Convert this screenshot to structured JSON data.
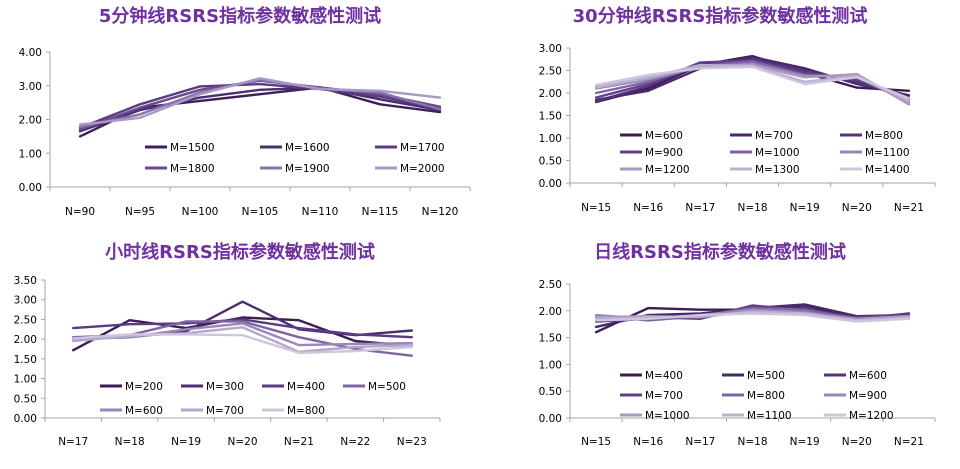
{
  "chart_data": [
    {
      "type": "line",
      "title": "5分钟线RSRS指标参数敏感性测试",
      "categories": [
        "N=90",
        "N=95",
        "N=100",
        "N=105",
        "N=110",
        "N=115",
        "N=120"
      ],
      "ylim": [
        0,
        4
      ],
      "yticks": [
        "0.00",
        "1.00",
        "2.00",
        "3.00",
        "4.00"
      ],
      "grid": false,
      "legend": "inside-lower",
      "series": [
        {
          "name": "M=1500",
          "values": [
            1.5,
            2.35,
            2.55,
            2.75,
            2.95,
            2.45,
            2.22
          ],
          "color": "#3f1f5a"
        },
        {
          "name": "M=1600",
          "values": [
            1.65,
            2.28,
            2.65,
            2.88,
            2.95,
            2.6,
            2.28
          ],
          "color": "#4a2e6e"
        },
        {
          "name": "M=1700",
          "values": [
            1.75,
            2.45,
            2.98,
            3.05,
            2.9,
            2.68,
            2.32
          ],
          "color": "#5a3a80"
        },
        {
          "name": "M=1800",
          "values": [
            1.7,
            2.35,
            2.88,
            3.15,
            2.95,
            2.75,
            2.38
          ],
          "color": "#6a4a90"
        },
        {
          "name": "M=1900",
          "values": [
            1.78,
            2.15,
            2.8,
            3.18,
            2.92,
            2.8,
            2.3
          ],
          "color": "#8a72ac"
        },
        {
          "name": "M=2000",
          "values": [
            1.85,
            2.05,
            2.75,
            3.22,
            2.9,
            2.85,
            2.65
          ],
          "color": "#a898c4"
        }
      ]
    },
    {
      "type": "line",
      "title": "30分钟线RSRS指标参数敏感性测试",
      "categories": [
        "N=15",
        "N=16",
        "N=17",
        "N=18",
        "N=19",
        "N=20",
        "N=21"
      ],
      "ylim": [
        0,
        3
      ],
      "yticks": [
        "0.00",
        "0.50",
        "1.00",
        "1.50",
        "2.00",
        "2.50",
        "3.00"
      ],
      "grid": false,
      "legend": "inside-lower",
      "series": [
        {
          "name": "M=600",
          "values": [
            1.8,
            2.1,
            2.62,
            2.82,
            2.45,
            2.12,
            2.05
          ],
          "color": "#3a1c55"
        },
        {
          "name": "M=700",
          "values": [
            1.85,
            2.05,
            2.55,
            2.8,
            2.55,
            2.2,
            1.95
          ],
          "color": "#46296a"
        },
        {
          "name": "M=800",
          "values": [
            1.82,
            2.15,
            2.65,
            2.75,
            2.5,
            2.25,
            1.9
          ],
          "color": "#54337a"
        },
        {
          "name": "M=900",
          "values": [
            1.9,
            2.2,
            2.68,
            2.72,
            2.45,
            2.3,
            1.85
          ],
          "color": "#624088"
        },
        {
          "name": "M=1000",
          "values": [
            2.0,
            2.25,
            2.6,
            2.7,
            2.4,
            2.35,
            1.8
          ],
          "color": "#7e64a2"
        },
        {
          "name": "M=1100",
          "values": [
            2.1,
            2.3,
            2.58,
            2.65,
            2.38,
            2.38,
            1.78
          ],
          "color": "#9a86b8"
        },
        {
          "name": "M=1200",
          "values": [
            2.15,
            2.32,
            2.6,
            2.62,
            2.35,
            2.42,
            1.75
          ],
          "color": "#a898c0"
        },
        {
          "name": "M=1300",
          "values": [
            2.12,
            2.35,
            2.62,
            2.6,
            2.25,
            2.38,
            1.82
          ],
          "color": "#bcb0d0"
        },
        {
          "name": "M=1400",
          "values": [
            2.18,
            2.4,
            2.55,
            2.58,
            2.2,
            2.35,
            1.88
          ],
          "color": "#cfc6de"
        }
      ]
    },
    {
      "type": "line",
      "title": "小时线RSRS指标参数敏感性测试",
      "categories": [
        "N=17",
        "N=18",
        "N=19",
        "N=20",
        "N=21",
        "N=22",
        "N=23"
      ],
      "ylim": [
        0,
        3.5
      ],
      "yticks": [
        "0.00",
        "0.50",
        "1.00",
        "1.50",
        "2.00",
        "2.50",
        "3.00",
        "3.50"
      ],
      "grid": false,
      "legend": "inside-lower",
      "series": [
        {
          "name": "M=200",
          "values": [
            1.72,
            2.48,
            2.28,
            2.55,
            2.48,
            1.95,
            1.83
          ],
          "color": "#3a1c55"
        },
        {
          "name": "M=300",
          "values": [
            2.0,
            2.05,
            2.2,
            2.95,
            2.25,
            2.1,
            2.22
          ],
          "color": "#4a2e6e"
        },
        {
          "name": "M=400",
          "values": [
            2.28,
            2.38,
            2.4,
            2.5,
            2.28,
            2.12,
            2.05
          ],
          "color": "#5a3a80"
        },
        {
          "name": "M=500",
          "values": [
            2.05,
            2.1,
            2.45,
            2.45,
            2.05,
            1.75,
            1.58
          ],
          "color": "#7e64a2"
        },
        {
          "name": "M=600",
          "values": [
            2.0,
            2.05,
            2.25,
            2.4,
            1.85,
            1.88,
            1.9
          ],
          "color": "#9a86b8"
        },
        {
          "name": "M=700",
          "values": [
            1.95,
            2.08,
            2.15,
            2.3,
            1.68,
            1.8,
            1.85
          ],
          "color": "#b4a6cc"
        },
        {
          "name": "M=800",
          "values": [
            2.02,
            2.12,
            2.12,
            2.1,
            1.65,
            1.7,
            1.8
          ],
          "color": "#cfc6de"
        }
      ]
    },
    {
      "type": "line",
      "title": "日线RSRS指标参数敏感性测试",
      "categories": [
        "N=15",
        "N=16",
        "N=17",
        "N=18",
        "N=19",
        "N=20",
        "N=21"
      ],
      "ylim": [
        0,
        2.5
      ],
      "yticks": [
        "0.00",
        "0.50",
        "1.00",
        "1.50",
        "2.00",
        "2.50"
      ],
      "grid": false,
      "legend": "inside-lower",
      "series": [
        {
          "name": "M=400",
          "values": [
            1.6,
            2.05,
            2.02,
            2.02,
            2.1,
            1.88,
            1.9
          ],
          "color": "#3a1c55"
        },
        {
          "name": "M=500",
          "values": [
            1.7,
            1.92,
            1.95,
            2.05,
            2.12,
            1.9,
            1.92
          ],
          "color": "#46296a"
        },
        {
          "name": "M=600",
          "values": [
            1.8,
            1.85,
            1.88,
            2.08,
            2.05,
            1.85,
            1.95
          ],
          "color": "#54337a"
        },
        {
          "name": "M=700",
          "values": [
            1.85,
            1.88,
            1.85,
            2.1,
            2.0,
            1.88,
            1.92
          ],
          "color": "#624088"
        },
        {
          "name": "M=800",
          "values": [
            1.9,
            1.82,
            1.9,
            2.05,
            2.02,
            1.85,
            1.9
          ],
          "color": "#7e64a2"
        },
        {
          "name": "M=900",
          "values": [
            1.92,
            1.85,
            1.92,
            2.02,
            1.98,
            1.82,
            1.88
          ],
          "color": "#9a86b8"
        },
        {
          "name": "M=1000",
          "values": [
            1.88,
            1.9,
            1.88,
            2.0,
            1.95,
            1.85,
            1.9
          ],
          "color": "#a898c0"
        },
        {
          "name": "M=1100",
          "values": [
            1.85,
            1.88,
            1.9,
            1.98,
            1.95,
            1.82,
            1.88
          ],
          "color": "#bcb0d0"
        },
        {
          "name": "M=1200",
          "values": [
            1.82,
            1.85,
            1.92,
            1.95,
            1.92,
            1.8,
            1.85
          ],
          "color": "#cfc6de"
        }
      ]
    }
  ]
}
